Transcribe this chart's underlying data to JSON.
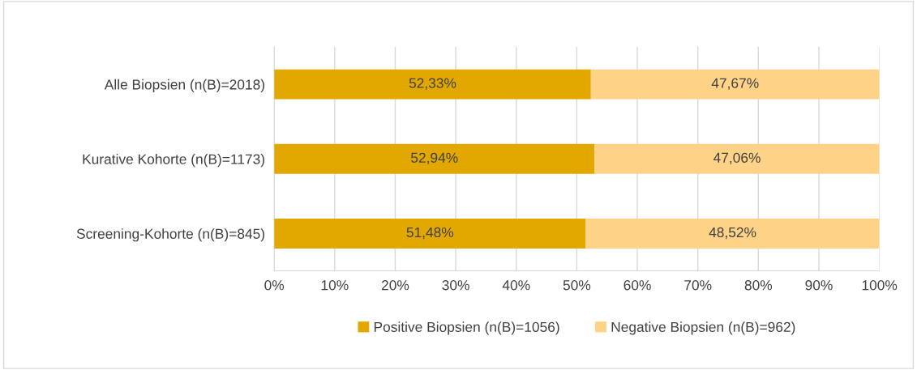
{
  "chart_data": {
    "type": "bar",
    "orientation": "horizontal",
    "stacked": true,
    "categories": [
      "Alle Biopsien (n(B)=2018)",
      "Kurative Kohorte (n(B)=1173)",
      "Screening-Kohorte (n(B)=845)"
    ],
    "series": [
      {
        "name": "Positive Biopsien (n(B)=1056)",
        "color": "#e3a800",
        "values": [
          52.33,
          52.94,
          51.48
        ],
        "value_labels": [
          "52,33%",
          "52,94%",
          "51,48%"
        ]
      },
      {
        "name": "Negative Biopsien (n(B)=962)",
        "color": "#ffd387",
        "values": [
          47.67,
          47.06,
          48.52
        ],
        "value_labels": [
          "47,67%",
          "47,06%",
          "48,52%"
        ]
      }
    ],
    "xlim": [
      0,
      100
    ],
    "xticks": [
      {
        "value": 0,
        "label": "0%"
      },
      {
        "value": 10,
        "label": "10%"
      },
      {
        "value": 20,
        "label": "20%"
      },
      {
        "value": 30,
        "label": "30%"
      },
      {
        "value": 40,
        "label": "40%"
      },
      {
        "value": 50,
        "label": "50%"
      },
      {
        "value": 60,
        "label": "60%"
      },
      {
        "value": 70,
        "label": "70%"
      },
      {
        "value": 80,
        "label": "80%"
      },
      {
        "value": 90,
        "label": "90%"
      },
      {
        "value": 100,
        "label": "100%"
      }
    ],
    "grid": "x",
    "legend": "bottom"
  }
}
